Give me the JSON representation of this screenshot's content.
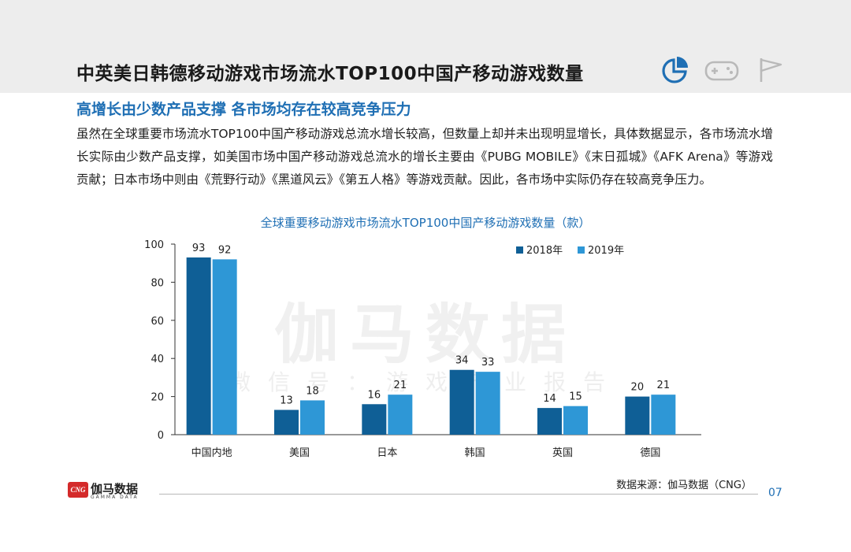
{
  "header": {
    "title": "中英美日韩德移动游戏市场流水TOP100中国产移动游戏数量",
    "icons": [
      "pie-chart-icon",
      "gamepad-icon",
      "flag-icon"
    ],
    "accent_color": "#1f6fb4"
  },
  "subtitle": "高增长由少数产品支撑  各市场均存在较高竞争压力",
  "body_text": "虽然在全球重要市场流水TOP100中国产移动游戏总流水增长较高，但数量上却并未出现明显增长，具体数据显示，各市场流水增长实际由少数产品支撑，如美国市场中国产移动游戏总流水的增长主要由《PUBG MOBILE》《末日孤城》《AFK Arena》等游戏贡献；日本市场中则由《荒野行动》《黑道风云》《第五人格》等游戏贡献。因此，各市场中实际仍存在较高竞争压力。",
  "watermark": {
    "main": "伽马数据",
    "sub": "微信号：游戏产业报告"
  },
  "chart_data": {
    "type": "bar",
    "title": "全球重要移动游戏市场流水TOP100中国产移动游戏数量（款）",
    "categories": [
      "中国内地",
      "美国",
      "日本",
      "韩国",
      "英国",
      "德国"
    ],
    "series": [
      {
        "name": "2018年",
        "values": [
          93,
          13,
          16,
          34,
          14,
          20
        ],
        "color": "#0f5f96"
      },
      {
        "name": "2019年",
        "values": [
          92,
          18,
          21,
          33,
          15,
          21
        ],
        "color": "#2e97d6"
      }
    ],
    "ylim": [
      0,
      100
    ],
    "yticks": [
      "0",
      "20",
      "40",
      "60",
      "80",
      "100"
    ],
    "legend_position": "top-right",
    "grid": false
  },
  "footer": {
    "source": "数据来源：伽马数据（CNG）",
    "page_number": "07",
    "logo_badge": "CNG",
    "logo_name": "伽马数据",
    "logo_en": "GAMMA DATA"
  }
}
